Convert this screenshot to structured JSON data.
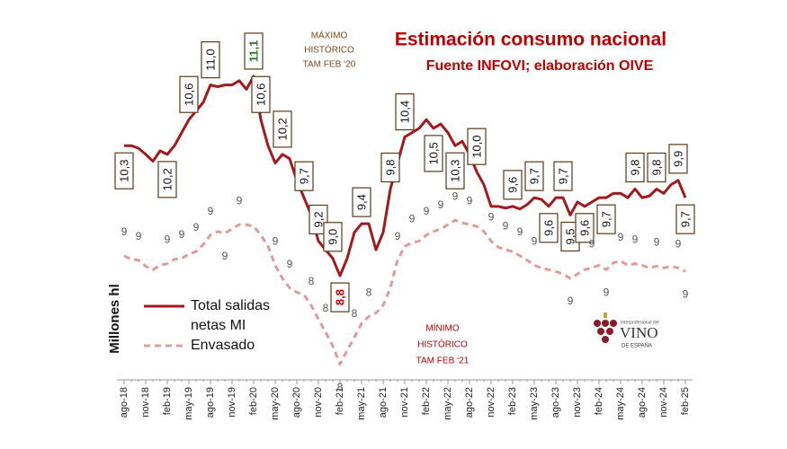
{
  "chart_data": {
    "type": "line",
    "title": "Estimación consumo nacional",
    "subtitle": "Fuente INFOVI; elaboración OIVE",
    "y_label": "Millones hl",
    "annotations": [
      [
        "MÁXIMO",
        "HISTÓRICO",
        "TAM FEB ‘20"
      ],
      [
        "MÍNIMO",
        "HISTÓRICO",
        "TAM FEB ‘21"
      ]
    ],
    "categories": [
      "ago-18",
      null,
      null,
      "nov-18",
      null,
      null,
      "feb-19",
      null,
      null,
      "may-19",
      null,
      null,
      "ago-19",
      null,
      null,
      "nov-19",
      null,
      null,
      "feb-20",
      null,
      null,
      "may-20",
      null,
      null,
      "ago-20",
      null,
      null,
      "nov-20",
      null,
      null,
      "feb-21",
      null,
      null,
      "may-21",
      null,
      null,
      "ago-21",
      null,
      null,
      "nov-21",
      null,
      null,
      "feb-22",
      null,
      null,
      "may-22",
      null,
      null,
      "ago-22",
      null,
      null,
      "nov-22",
      null,
      null,
      "feb-23",
      null,
      null,
      "may-23",
      null,
      null,
      "ago-23",
      null,
      null,
      "nov-23",
      null,
      null,
      "feb-24",
      null,
      null,
      "may-24",
      null,
      null,
      "ago-24",
      null,
      null,
      "nov-24",
      null,
      null,
      "feb-25"
    ],
    "ylim": [
      7.6,
      11.7
    ],
    "series": [
      {
        "name": "Total salidas netas MI",
        "color": "#a3191c",
        "line_style": "solid",
        "values": [
          10.3,
          10.3,
          10.27,
          10.2,
          10.12,
          10.24,
          10.2,
          10.3,
          10.45,
          10.6,
          10.7,
          10.8,
          11.0,
          10.98,
          11.0,
          11.0,
          11.05,
          10.95,
          11.1,
          10.6,
          10.3,
          10.1,
          10.2,
          10.15,
          9.9,
          9.7,
          9.5,
          9.2,
          9.1,
          9.0,
          8.8,
          9.0,
          9.3,
          9.4,
          9.4,
          9.1,
          9.3,
          9.8,
          10.1,
          10.4,
          10.45,
          10.5,
          10.6,
          10.5,
          10.55,
          10.45,
          10.3,
          10.35,
          10.2,
          10.0,
          9.85,
          9.6,
          9.6,
          9.58,
          9.6,
          9.57,
          9.62,
          9.7,
          9.68,
          9.6,
          9.7,
          9.7,
          9.5,
          9.65,
          9.6,
          9.65,
          9.7,
          9.7,
          9.75,
          9.75,
          9.7,
          9.8,
          9.7,
          9.72,
          9.8,
          9.75,
          9.85,
          9.9,
          9.7
        ],
        "value_labels": [
          "10,3",
          null,
          null,
          null,
          null,
          null,
          "10,2",
          null,
          null,
          "10,6",
          null,
          null,
          "11,0",
          null,
          null,
          null,
          null,
          null,
          "11,1",
          "10,6",
          null,
          null,
          "10,2",
          null,
          null,
          "9,7",
          null,
          "9,2",
          null,
          "9,0",
          "8,8",
          null,
          null,
          "9,4",
          null,
          null,
          null,
          "9,8",
          null,
          "10,4",
          null,
          null,
          null,
          "10,5",
          null,
          null,
          "10,3",
          null,
          null,
          "10,0",
          null,
          null,
          null,
          null,
          "9,6",
          null,
          null,
          "9,7",
          null,
          "9,6",
          null,
          "9,7",
          "9,5",
          null,
          "9,6",
          null,
          null,
          "9,7",
          null,
          null,
          null,
          "9,8",
          null,
          null,
          "9,8",
          null,
          null,
          "9,9",
          "9,7"
        ]
      },
      {
        "name": "Envasado",
        "color": "#e09c9c",
        "line_style": "dashed",
        "values": [
          9.03,
          8.99,
          8.98,
          8.91,
          8.87,
          8.92,
          8.94,
          8.99,
          9.0,
          9.05,
          9.08,
          9.16,
          9.27,
          9.31,
          9.29,
          9.34,
          9.39,
          9.39,
          9.37,
          9.27,
          9.14,
          8.92,
          8.77,
          8.66,
          8.61,
          8.58,
          8.46,
          8.3,
          8.15,
          7.99,
          7.78,
          7.94,
          8.09,
          8.25,
          8.33,
          8.37,
          8.46,
          8.66,
          8.98,
          9.14,
          9.18,
          9.2,
          9.27,
          9.31,
          9.34,
          9.39,
          9.44,
          9.41,
          9.39,
          9.37,
          9.31,
          9.2,
          9.13,
          9.1,
          9.08,
          9.03,
          8.98,
          8.92,
          8.89,
          8.87,
          8.85,
          8.82,
          8.77,
          8.82,
          8.87,
          8.89,
          8.92,
          8.87,
          8.95,
          8.97,
          8.92,
          8.94,
          8.92,
          8.89,
          8.91,
          8.89,
          8.91,
          8.89,
          8.85
        ],
        "value_labels": [
          "9",
          null,
          "9",
          null,
          null,
          null,
          "9",
          null,
          "9",
          null,
          "9",
          null,
          "9",
          null,
          "9",
          null,
          "9",
          null,
          null,
          null,
          null,
          "9",
          null,
          "9",
          null,
          null,
          "8",
          null,
          "8",
          null,
          "8",
          null,
          "8",
          null,
          "8",
          null,
          null,
          null,
          "9",
          null,
          "9",
          null,
          "9",
          null,
          "9",
          null,
          "9",
          null,
          "9",
          null,
          null,
          "9",
          null,
          "9",
          null,
          "9",
          null,
          "9",
          null,
          null,
          null,
          null,
          "9",
          null,
          null,
          "9",
          null,
          "9",
          null,
          "9",
          null,
          "9",
          null,
          null,
          "9",
          null,
          null,
          "9",
          "9"
        ]
      }
    ]
  },
  "logo": {
    "small": "Interprofesional del",
    "main": "VINO",
    "sub": "DE ESPAÑA"
  }
}
